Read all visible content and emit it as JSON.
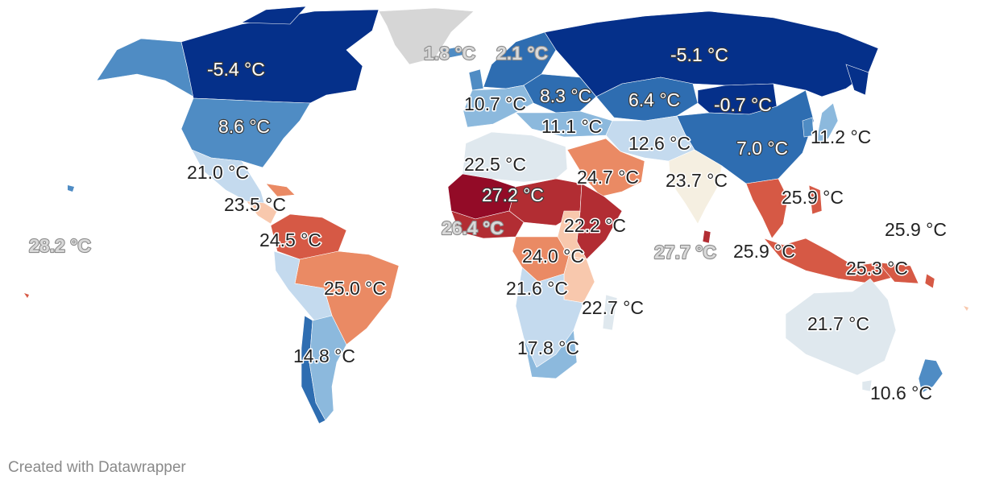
{
  "credit": "Created with Datawrapper",
  "colors": {
    "very_cold": "#05308a",
    "cold": "#2e6db1",
    "cool": "#4f8cc4",
    "mild_cool": "#8cb9dd",
    "mild": "#c4daee",
    "neutral": "#dfe8ee",
    "warm_neutral": "#f5efe1",
    "warm_light": "#f8c8ad",
    "warm": "#ea8a64",
    "hot": "#d65945",
    "very_hot": "#b22d33",
    "hottest": "#930b27",
    "no_data": "#d6d6d6"
  },
  "labels": [
    {
      "id": "canada",
      "text": "-5.4 °C",
      "style": "light"
    },
    {
      "id": "greenland",
      "text": "1.8 °C",
      "style": "ghost"
    },
    {
      "id": "norway",
      "text": "2.1 °C",
      "style": "ghost"
    },
    {
      "id": "russia",
      "text": "-5.1 °C",
      "style": "light"
    },
    {
      "id": "france",
      "text": "10.7 °C",
      "style": "dark"
    },
    {
      "id": "eastern-europe",
      "text": "8.3 °C",
      "style": "light"
    },
    {
      "id": "kazakhstan",
      "text": "6.4 °C",
      "style": "light"
    },
    {
      "id": "mongolia",
      "text": "-0.7 °C",
      "style": "light"
    },
    {
      "id": "usa",
      "text": "8.6 °C",
      "style": "light"
    },
    {
      "id": "balkans",
      "text": "11.1 °C",
      "style": "dark"
    },
    {
      "id": "iran",
      "text": "12.6 °C",
      "style": "dark"
    },
    {
      "id": "china",
      "text": "7.0 °C",
      "style": "light"
    },
    {
      "id": "japan",
      "text": "11.2 °C",
      "style": "dark"
    },
    {
      "id": "mexico",
      "text": "21.0 °C",
      "style": "dark"
    },
    {
      "id": "libya",
      "text": "22.5 °C",
      "style": "dark"
    },
    {
      "id": "saudi-arabia",
      "text": "24.7 °C",
      "style": "dark"
    },
    {
      "id": "india",
      "text": "23.7 °C",
      "style": "dark"
    },
    {
      "id": "central-america",
      "text": "23.5 °C",
      "style": "dark"
    },
    {
      "id": "sahel",
      "text": "27.2 °C",
      "style": "light"
    },
    {
      "id": "southeast-asia",
      "text": "25.9 °C",
      "style": "dark"
    },
    {
      "id": "polynesia",
      "text": "28.2 °C",
      "style": "ghost"
    },
    {
      "id": "west-africa",
      "text": "26.4 °C",
      "style": "ghost"
    },
    {
      "id": "ethiopia",
      "text": "22.2 °C",
      "style": "dark"
    },
    {
      "id": "micronesia",
      "text": "25.9 °C",
      "style": "dark"
    },
    {
      "id": "venezuela",
      "text": "24.5 °C",
      "style": "dark"
    },
    {
      "id": "maldives",
      "text": "27.7 °C",
      "style": "ghost"
    },
    {
      "id": "malaysia",
      "text": "25.9 °C",
      "style": "dark"
    },
    {
      "id": "congo",
      "text": "24.0 °C",
      "style": "dark"
    },
    {
      "id": "papua",
      "text": "25.3 °C",
      "style": "dark"
    },
    {
      "id": "brazil",
      "text": "25.0 °C",
      "style": "dark"
    },
    {
      "id": "southern-africa",
      "text": "21.6 °C",
      "style": "dark"
    },
    {
      "id": "madagascar",
      "text": "22.7 °C",
      "style": "dark"
    },
    {
      "id": "australia",
      "text": "21.7 °C",
      "style": "dark"
    },
    {
      "id": "argentina",
      "text": "14.8 °C",
      "style": "dark"
    },
    {
      "id": "south-africa",
      "text": "17.8 °C",
      "style": "dark"
    },
    {
      "id": "new-zealand",
      "text": "10.6 °C",
      "style": "dark"
    }
  ]
}
